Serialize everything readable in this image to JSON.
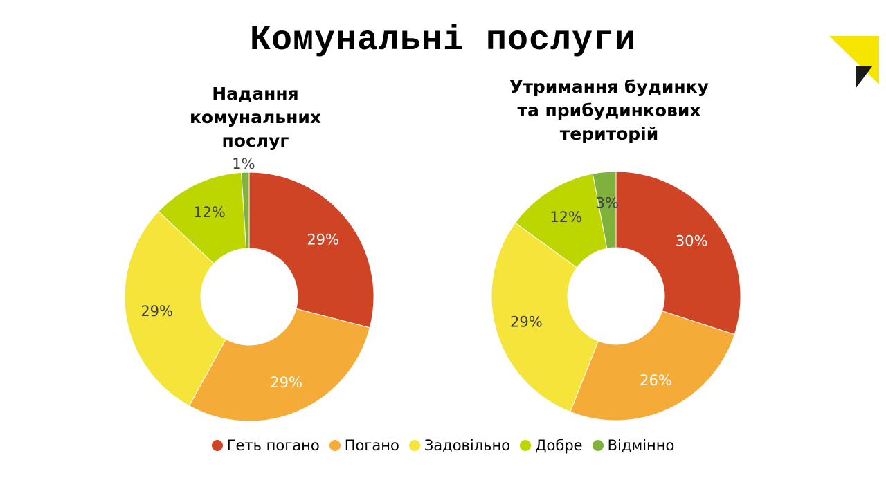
{
  "slide": {
    "title": "Комунальні послуги"
  },
  "legend": [
    {
      "label": "Геть погано",
      "color": "#d04426"
    },
    {
      "label": "Погано",
      "color": "#f5ab38"
    },
    {
      "label": "Задовільно",
      "color": "#f5e43a"
    },
    {
      "label": "Добре",
      "color": "#bed600"
    },
    {
      "label": "Відмінно",
      "color": "#7fb23d"
    }
  ],
  "chart_data": [
    {
      "type": "pie",
      "title": "Надання комунальних послуг",
      "title_lines": [
        "Надання",
        "комунальних",
        "послуг"
      ],
      "categories": [
        "Геть погано",
        "Погано",
        "Задовільно",
        "Добре",
        "Відмінно"
      ],
      "values": [
        29,
        29,
        29,
        12,
        1
      ],
      "data_labels": [
        "29%",
        "29%",
        "29%",
        "12%",
        "1%"
      ],
      "colors": [
        "#d04426",
        "#f5ab38",
        "#f5e43a",
        "#bed600",
        "#7fb23d"
      ],
      "donut": true,
      "legend_position": "bottom"
    },
    {
      "type": "pie",
      "title": "Утримання будинку та прибудинкових територій",
      "title_lines": [
        "Утримання будинку",
        "та прибудинкових",
        "територій"
      ],
      "categories": [
        "Геть погано",
        "Погано",
        "Задовільно",
        "Добре",
        "Відмінно"
      ],
      "values": [
        30,
        26,
        29,
        12,
        3
      ],
      "data_labels": [
        "30%",
        "26%",
        "29%",
        "12%",
        "3%"
      ],
      "colors": [
        "#d04426",
        "#f5ab38",
        "#f5e43a",
        "#bed600",
        "#7fb23d"
      ],
      "donut": true,
      "legend_position": "bottom"
    }
  ],
  "logo": {
    "yellow": "#f6e500",
    "dark": "#1a1a1a"
  }
}
